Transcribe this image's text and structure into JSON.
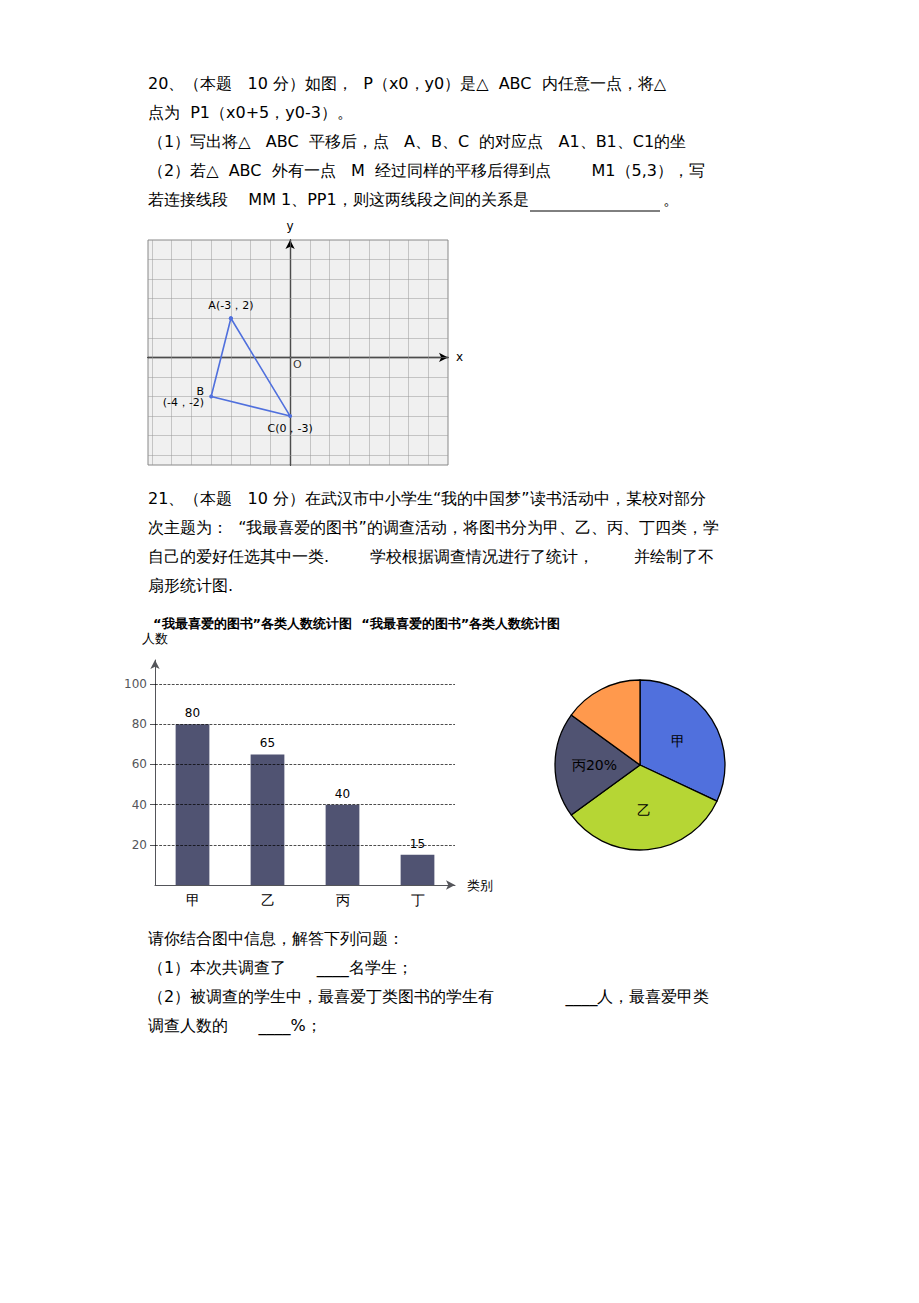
{
  "chart_data": [
    {
      "type": "line",
      "x": [
        -3,
        -4,
        0,
        -3
      ],
      "values": [
        2,
        -2,
        -3,
        2
      ],
      "value_labels": [
        "A(-3，2)",
        "B\n(-4，-2)",
        "C(0，-3)",
        null
      ],
      "xlabel": "x",
      "ylabel": "y",
      "xlim": [
        -7.2,
        8
      ],
      "ylim": [
        -5.5,
        6
      ],
      "xticks": [
        -7,
        -6,
        -5,
        -4,
        -3,
        -2,
        -1,
        0,
        1,
        2,
        3,
        4,
        5,
        6,
        7
      ],
      "yticks": [
        -5,
        -4,
        -3,
        -2,
        -1,
        0,
        1,
        2,
        3,
        4,
        5
      ],
      "tick_labels": false,
      "grid": true,
      "annotations": [
        "20、（本题   10 分）如图，  P（x0，y0）是△  ABC  内任意一点，将△",
        "点为  P1（x0+5，y0-3）。",
        "（1）写出将△   ABC  平移后，点   A、B、C  的对应点   A1、B1、C1的坐",
        "（2）若△  ABC  外有一点   M  经过同样的平移后得到点        M1（5,3），写",
        "若连接线段    MM 1、PP1，则这两线段之间的关系是",
        "。",
        {
          "text": "O",
          "x": 0,
          "y": 0
        }
      ]
    },
    {
      "type": "bar",
      "title": "“我最喜爱的图书”各类人数统计图  “我最喜爱的图书”各类人数统计图",
      "categories": [
        "甲",
        "乙",
        "丙",
        "丁"
      ],
      "values": [
        80,
        65,
        40,
        15
      ],
      "xlabel": "类别",
      "ylabel": "人数",
      "ylim": [
        0,
        112
      ],
      "yticks": [
        20,
        40,
        60,
        80,
        100
      ],
      "grid": true,
      "data_labels": true,
      "annotations": [
        "21、（本题   10 分）在武汉市中小学生“我的中国梦”读书活动中，某校对部分",
        "次主题为：  “我最喜爱的图书”的调查活动，将图书分为甲、乙、丙、丁四类，学",
        "自己的爱好任选其中一类.        学校根据调查情况进行了统计，        并绘制了不",
        "扇形统计图."
      ]
    },
    {
      "type": "pie",
      "categories": [
        "甲",
        "乙",
        "丙",
        null
      ],
      "values": [
        32,
        33,
        20,
        15
      ],
      "value_labels": [
        null,
        null,
        "20%",
        null
      ],
      "annotations": [
        "请你结合图中信息，解答下列问题：",
        "（1）本次共调查了      ____名学生；",
        "（2）被调查的学生中，最喜爱丁类图书的学生有              ____人，最喜爱甲类",
        "调查人数的      ____%；"
      ]
    }
  ]
}
